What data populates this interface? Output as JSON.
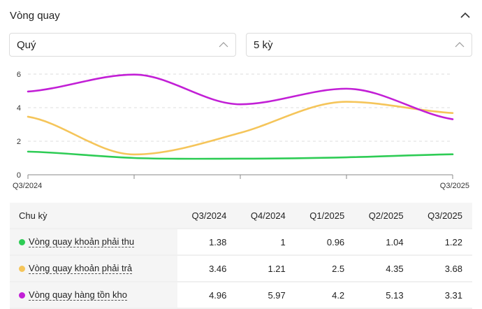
{
  "panel": {
    "title": "Vòng quay",
    "collapse_icon": "chevron-up-icon"
  },
  "filters": {
    "period": "Quý",
    "count": "5 kỳ"
  },
  "colors": {
    "receivables": "#2ecc55",
    "payables": "#f5c55a",
    "inventory": "#c21fd6",
    "grid": "#dddddd",
    "axis": "#888888"
  },
  "chart_data": {
    "type": "line",
    "x": [
      "Q3/2024",
      "Q4/2024",
      "Q1/2025",
      "Q2/2025",
      "Q3/2025"
    ],
    "x_tick_labels_shown": [
      "Q3/2024",
      "Q3/2025"
    ],
    "ylim": [
      0,
      6
    ],
    "yticks": [
      0,
      2,
      4,
      6
    ],
    "grid": "horizontal dashed",
    "series": [
      {
        "name": "Vòng quay khoản phải thu",
        "color": "#2ecc55",
        "values": [
          1.38,
          1,
          0.96,
          1.04,
          1.22
        ]
      },
      {
        "name": "Vòng quay khoản phải trả",
        "color": "#f5c55a",
        "values": [
          3.46,
          1.21,
          2.5,
          4.35,
          3.68
        ]
      },
      {
        "name": "Vòng quay hàng tồn kho",
        "color": "#c21fd6",
        "values": [
          4.96,
          5.97,
          4.2,
          5.13,
          3.31
        ]
      }
    ]
  },
  "table": {
    "header_label": "Chu kỳ",
    "columns": [
      "Q3/2024",
      "Q4/2024",
      "Q1/2025",
      "Q2/2025",
      "Q3/2025"
    ],
    "rows": [
      {
        "label": "Vòng quay khoản phải thu",
        "color": "#2ecc55",
        "values": [
          "1.38",
          "1",
          "0.96",
          "1.04",
          "1.22"
        ]
      },
      {
        "label": "Vòng quay khoản phải trả",
        "color": "#f5c55a",
        "values": [
          "3.46",
          "1.21",
          "2.5",
          "4.35",
          "3.68"
        ]
      },
      {
        "label": "Vòng quay hàng tồn kho",
        "color": "#c21fd6",
        "values": [
          "4.96",
          "5.97",
          "4.2",
          "5.13",
          "3.31"
        ]
      }
    ]
  }
}
